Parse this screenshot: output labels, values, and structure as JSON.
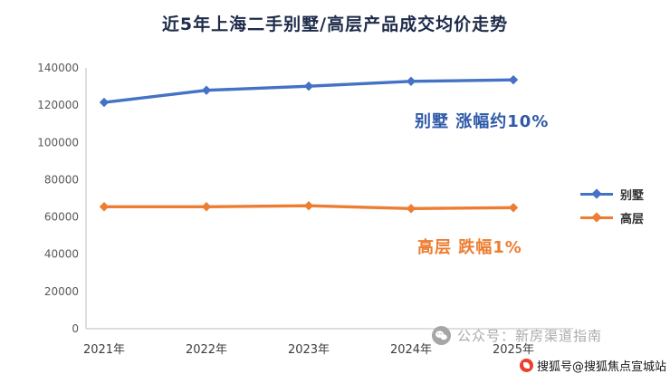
{
  "title": "近5年上海二手别墅/高层产品成交均价走势",
  "chart_data": {
    "type": "line",
    "title": "近5年上海二手别墅/高层产品成交均价走势",
    "categories": [
      "2021年",
      "2022年",
      "2023年",
      "2024年",
      "2025年"
    ],
    "series": [
      {
        "name": "别墅",
        "color": "#4472c4",
        "values": [
          121500,
          128000,
          130200,
          132800,
          133600
        ]
      },
      {
        "name": "高层",
        "color": "#ed7d31",
        "values": [
          65500,
          65500,
          66000,
          64500,
          65000
        ]
      }
    ],
    "ylim": [
      0,
      140000
    ],
    "ytick_step": 20000,
    "yticks": [
      "0",
      "20000",
      "40000",
      "60000",
      "80000",
      "100000",
      "120000",
      "140000"
    ],
    "grid": false,
    "legend_position": "right"
  },
  "annotations": {
    "villa": {
      "text": "别墅 涨幅约10%",
      "color": "#2e5aa8"
    },
    "highrise": {
      "text": "高层 跌幅1%",
      "color": "#ed7d31"
    }
  },
  "watermark": {
    "icon": "wechat-icon",
    "text": "公众号：新房渠道指南"
  },
  "footer": {
    "icon": "sohu-icon",
    "text": "搜狐号@搜狐焦点宣城站"
  }
}
